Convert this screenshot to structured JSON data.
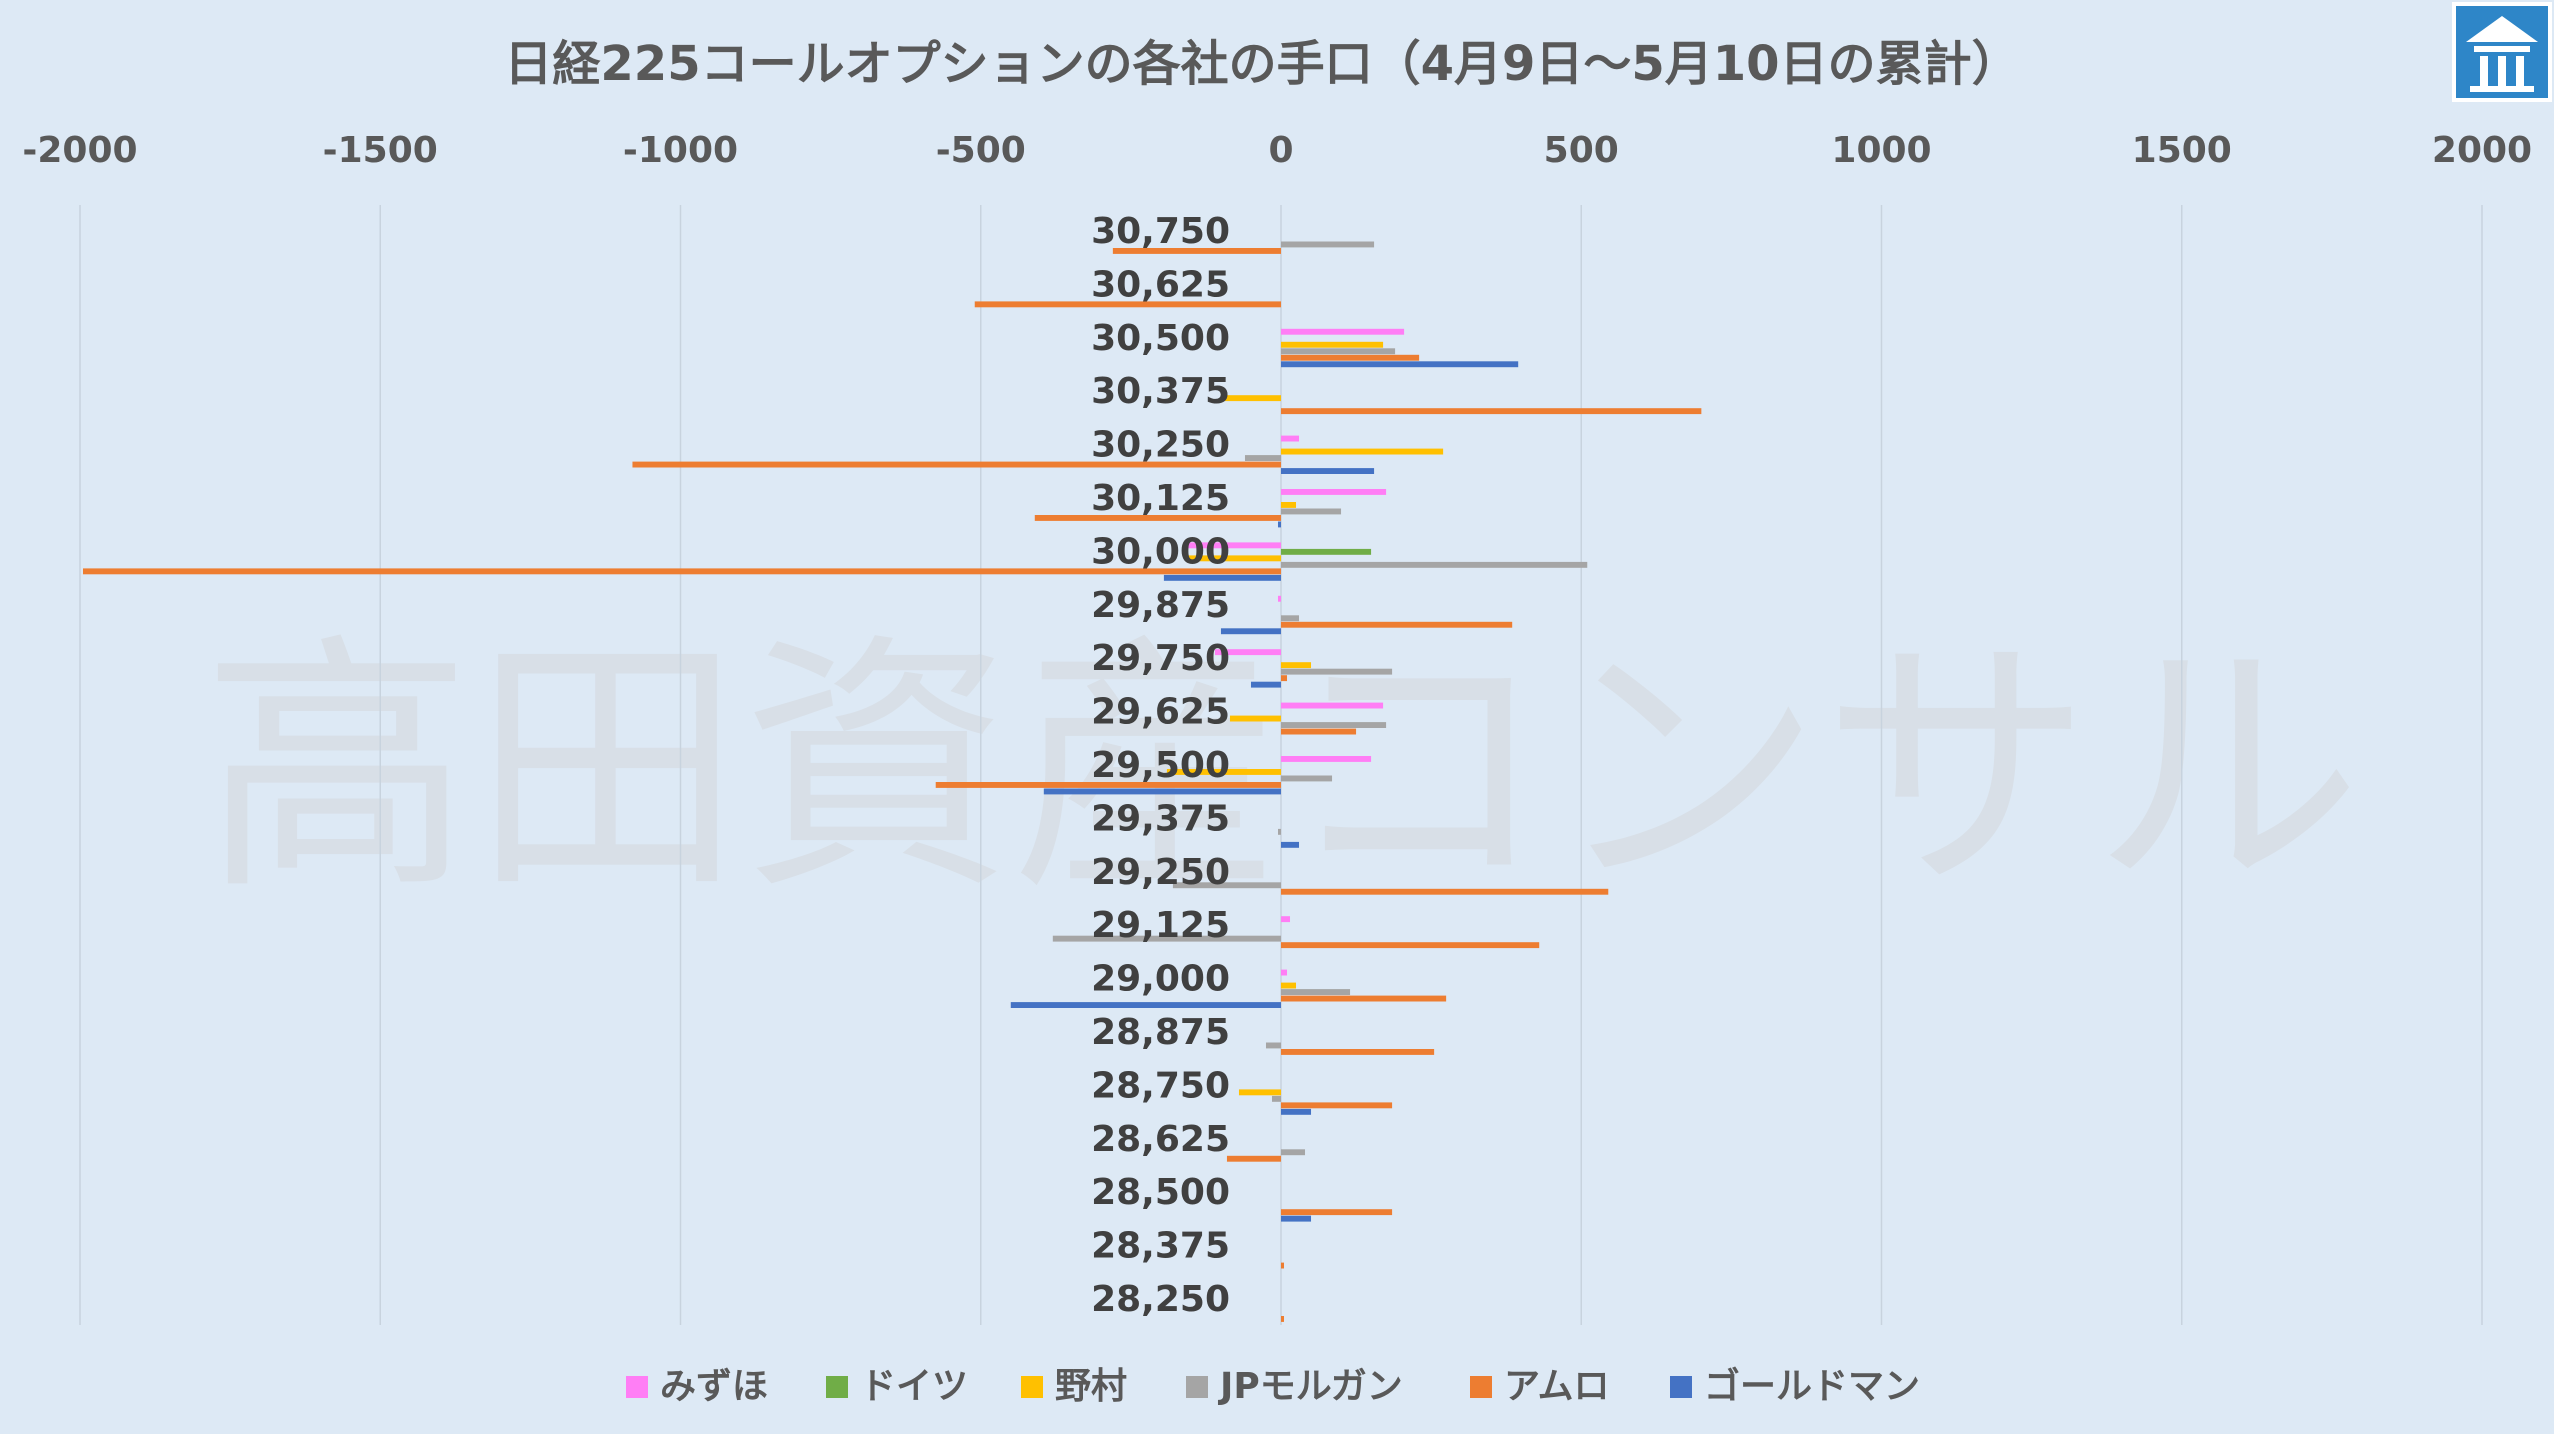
{
  "chart_data": {
    "type": "bar",
    "orientation": "horizontal",
    "title": "日経225コールオプションの各社の手口（4月9日～5月10日の累計）",
    "watermark": "高田資産コンサル",
    "xlim": [
      -2000,
      2000
    ],
    "xticks": [
      "-2000",
      "-1500",
      "-1000",
      "-500",
      "0",
      "500",
      "1000",
      "1500",
      "2000"
    ],
    "grid": true,
    "legend_position": "bottom",
    "categories": [
      "30,750",
      "30,625",
      "30,500",
      "30,375",
      "30,250",
      "30,125",
      "30,000",
      "29,875",
      "29,750",
      "29,625",
      "29,500",
      "29,375",
      "29,250",
      "29,125",
      "29,000",
      "28,875",
      "28,750",
      "28,625",
      "28,500",
      "28,375",
      "28,250"
    ],
    "series": [
      {
        "name": "みずほ",
        "color": "#ff7ef5",
        "values": [
          0,
          0,
          205,
          0,
          30,
          175,
          -160,
          -5,
          -110,
          170,
          150,
          0,
          0,
          15,
          10,
          0,
          0,
          0,
          0,
          0,
          0
        ]
      },
      {
        "name": "ドイツ",
        "color": "#70ad47",
        "values": [
          0,
          0,
          0,
          0,
          0,
          0,
          150,
          0,
          0,
          0,
          0,
          0,
          0,
          0,
          0,
          0,
          0,
          0,
          0,
          0,
          0
        ]
      },
      {
        "name": "野村",
        "color": "#ffc000",
        "values": [
          0,
          0,
          170,
          -95,
          270,
          25,
          -155,
          0,
          50,
          -85,
          -190,
          0,
          0,
          0,
          25,
          0,
          -70,
          0,
          0,
          0,
          0
        ]
      },
      {
        "name": "JPモルガン",
        "color": "#a5a5a5",
        "values": [
          155,
          0,
          190,
          0,
          -60,
          100,
          510,
          30,
          185,
          175,
          85,
          -5,
          -180,
          -380,
          115,
          -25,
          -15,
          40,
          0,
          0,
          0
        ]
      },
      {
        "name": "アムロ",
        "color": "#ed7d31",
        "values": [
          -280,
          -510,
          230,
          700,
          -1080,
          -410,
          -1995,
          385,
          10,
          125,
          -575,
          0,
          545,
          430,
          275,
          255,
          185,
          -90,
          185,
          5,
          5
        ]
      },
      {
        "name": "ゴールドマン",
        "color": "#4472c4",
        "values": [
          0,
          0,
          395,
          0,
          155,
          -5,
          -195,
          -100,
          -50,
          0,
          -395,
          30,
          0,
          0,
          -450,
          0,
          50,
          0,
          50,
          0,
          0
        ]
      }
    ]
  }
}
